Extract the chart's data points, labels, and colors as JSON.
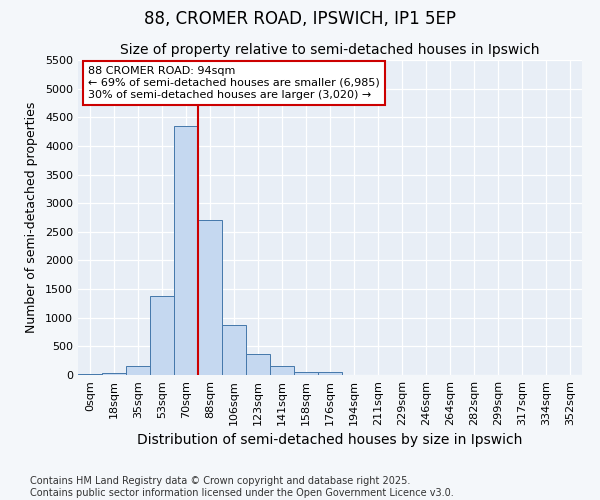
{
  "title": "88, CROMER ROAD, IPSWICH, IP1 5EP",
  "subtitle": "Size of property relative to semi-detached houses in Ipswich",
  "xlabel": "Distribution of semi-detached houses by size in Ipswich",
  "ylabel": "Number of semi-detached properties",
  "categories": [
    "0sqm",
    "18sqm",
    "35sqm",
    "53sqm",
    "70sqm",
    "88sqm",
    "106sqm",
    "123sqm",
    "141sqm",
    "158sqm",
    "176sqm",
    "194sqm",
    "211sqm",
    "229sqm",
    "246sqm",
    "264sqm",
    "282sqm",
    "299sqm",
    "317sqm",
    "334sqm",
    "352sqm"
  ],
  "values": [
    10,
    30,
    165,
    1375,
    4350,
    2700,
    875,
    375,
    165,
    60,
    60,
    0,
    0,
    0,
    0,
    0,
    0,
    0,
    0,
    0,
    0
  ],
  "bar_color": "#c5d8f0",
  "bar_edge_color": "#4477aa",
  "vline_x": 4.5,
  "vline_color": "#cc0000",
  "annotation_text": "88 CROMER ROAD: 94sqm\n← 69% of semi-detached houses are smaller (6,985)\n30% of semi-detached houses are larger (3,020) →",
  "annotation_box_color": "#ffffff",
  "annotation_box_edge_color": "#cc0000",
  "ylim": [
    0,
    5500
  ],
  "yticks": [
    0,
    500,
    1000,
    1500,
    2000,
    2500,
    3000,
    3500,
    4000,
    4500,
    5000,
    5500
  ],
  "footer_line1": "Contains HM Land Registry data © Crown copyright and database right 2025.",
  "footer_line2": "Contains public sector information licensed under the Open Government Licence v3.0.",
  "bg_color": "#f4f7fa",
  "plot_bg_color": "#e8eef6",
  "title_fontsize": 12,
  "subtitle_fontsize": 10,
  "xlabel_fontsize": 10,
  "ylabel_fontsize": 9,
  "tick_fontsize": 8,
  "footer_fontsize": 7,
  "annot_fontsize": 8
}
